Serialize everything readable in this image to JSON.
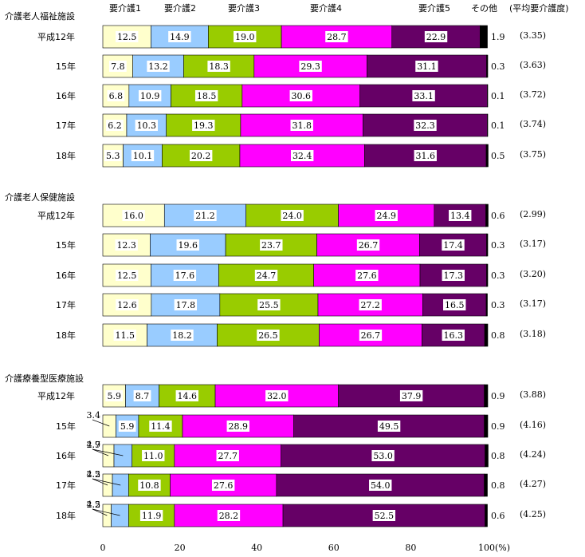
{
  "chart_data": {
    "type": "bar",
    "orientation": "horizontal",
    "stacked": true,
    "unit": "%",
    "xlim": [
      0,
      100
    ],
    "xticks": [
      "0",
      "20",
      "40",
      "60",
      "80",
      "100(%)"
    ],
    "legend_headers": [
      "要介護1",
      "要介護2",
      "要介護3",
      "要介護4",
      "要介護5",
      "その他",
      "(平均要介護度)"
    ],
    "series_colors": [
      "#ffffcc",
      "#99ccff",
      "#99cc00",
      "#ff00ff",
      "#660066",
      "#000000"
    ],
    "groups": [
      {
        "name": "介護老人福祉施設",
        "rows": [
          {
            "label": "平成12年",
            "values": [
              12.5,
              14.9,
              19.0,
              28.7,
              22.9,
              1.9
            ],
            "avg": "(3.35)"
          },
          {
            "label": "15年",
            "values": [
              7.8,
              13.2,
              18.3,
              29.3,
              31.1,
              0.3
            ],
            "avg": "(3.63)"
          },
          {
            "label": "16年",
            "values": [
              6.8,
              10.9,
              18.5,
              30.6,
              33.1,
              0.1
            ],
            "avg": "(3.72)"
          },
          {
            "label": "17年",
            "values": [
              6.2,
              10.3,
              19.3,
              31.8,
              32.3,
              0.1
            ],
            "avg": "(3.74)"
          },
          {
            "label": "18年",
            "values": [
              5.3,
              10.1,
              20.2,
              32.4,
              31.6,
              0.5
            ],
            "avg": "(3.75)"
          }
        ]
      },
      {
        "name": "介護老人保健施設",
        "rows": [
          {
            "label": "平成12年",
            "values": [
              16.0,
              21.2,
              24.0,
              24.9,
              13.4,
              0.6
            ],
            "avg": "(2.99)"
          },
          {
            "label": "15年",
            "values": [
              12.3,
              19.6,
              23.7,
              26.7,
              17.4,
              0.3
            ],
            "avg": "(3.17)"
          },
          {
            "label": "16年",
            "values": [
              12.5,
              17.6,
              24.7,
              27.6,
              17.3,
              0.3
            ],
            "avg": "(3.20)"
          },
          {
            "label": "17年",
            "values": [
              12.6,
              17.8,
              25.5,
              27.2,
              16.5,
              0.3
            ],
            "avg": "(3.17)"
          },
          {
            "label": "18年",
            "values": [
              11.5,
              18.2,
              26.5,
              26.7,
              16.3,
              0.8
            ],
            "avg": "(3.18)"
          }
        ]
      },
      {
        "name": "介護療養型医療施設",
        "rows": [
          {
            "label": "平成12年",
            "values": [
              5.9,
              8.7,
              14.6,
              32.0,
              37.9,
              0.9
            ],
            "avg": "(3.88)"
          },
          {
            "label": "15年",
            "values": [
              3.4,
              5.9,
              11.4,
              28.9,
              49.5,
              0.9
            ],
            "avg": "(4.16)"
          },
          {
            "label": "16年",
            "values": [
              2.9,
              4.7,
              11.0,
              27.7,
              53.0,
              0.8
            ],
            "avg": "(4.24)"
          },
          {
            "label": "17年",
            "values": [
              2.5,
              4.2,
              10.8,
              27.6,
              54.0,
              0.8
            ],
            "avg": "(4.27)"
          },
          {
            "label": "18年",
            "values": [
              2.2,
              4.5,
              11.9,
              28.2,
              52.5,
              0.6
            ],
            "avg": "(4.25)"
          }
        ]
      }
    ]
  }
}
